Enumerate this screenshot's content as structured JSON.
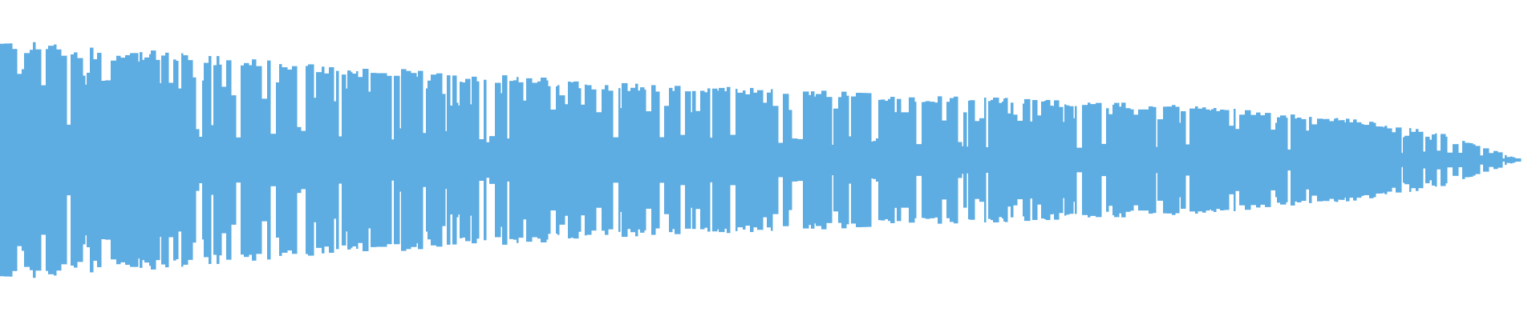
{
  "chart_data": {
    "type": "area",
    "subtype": "audio-waveform",
    "title": "",
    "xlabel": "",
    "ylabel": "",
    "ylim": [
      -1,
      1
    ],
    "grid": false,
    "legend": "none",
    "color": "#5DACE2",
    "background": "#FFFFFF",
    "peak_envelope": [
      0.76,
      0.72,
      0.68,
      0.64,
      0.6,
      0.57,
      0.54,
      0.51,
      0.48,
      0.46,
      0.44,
      0.42,
      0.4,
      0.38,
      0.36,
      0.34,
      0.3,
      0.25,
      0.17,
      0.0
    ]
  }
}
